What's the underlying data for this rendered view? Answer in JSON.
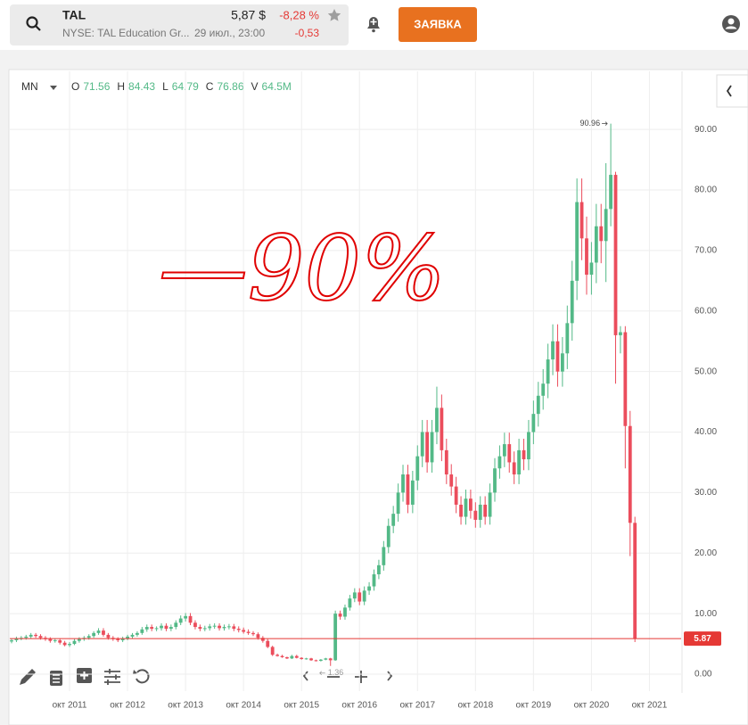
{
  "header": {
    "symbol": "TAL",
    "price": "5,87 $",
    "change_pct": "-8,28 %",
    "exchange_name": "NYSE: TAL Education Gr...",
    "time": "29 июл., 23:00",
    "change": "-0,53",
    "button": "ЗАЯВКА"
  },
  "legend": {
    "interval": "MN",
    "items": [
      {
        "label": "O",
        "value": "71.56"
      },
      {
        "label": "H",
        "value": "84.43"
      },
      {
        "label": "L",
        "value": "64.79"
      },
      {
        "label": "C",
        "value": "76.86"
      },
      {
        "label": "V",
        "value": "64.5M"
      }
    ]
  },
  "chart_data": {
    "type": "candlestick",
    "annotation": "—90%",
    "up_color": "#53b987",
    "down_color": "#eb4d5c",
    "last_price_color": "#e53935",
    "grid": true,
    "ylim": [
      -2.8,
      99.6
    ],
    "yticks": [
      {
        "value": 0,
        "label": "0.00"
      },
      {
        "value": 10,
        "label": "10.00"
      },
      {
        "value": 20,
        "label": "20.00"
      },
      {
        "value": 30,
        "label": "30.00"
      },
      {
        "value": 40,
        "label": "40.00"
      },
      {
        "value": 50,
        "label": "50.00"
      },
      {
        "value": 60,
        "label": "60.00"
      },
      {
        "value": 70,
        "label": "70.00"
      },
      {
        "value": 80,
        "label": "80.00"
      },
      {
        "value": 90,
        "label": "90.00"
      }
    ],
    "categories": [
      null,
      null,
      null,
      null,
      null,
      null,
      null,
      null,
      null,
      null,
      null,
      null,
      "окт 2011",
      null,
      null,
      null,
      null,
      null,
      null,
      null,
      null,
      null,
      null,
      null,
      "окт 2012",
      null,
      null,
      null,
      null,
      null,
      null,
      null,
      null,
      null,
      null,
      null,
      "окт 2013",
      null,
      null,
      null,
      null,
      null,
      null,
      null,
      null,
      null,
      null,
      null,
      "окт 2014",
      null,
      null,
      null,
      null,
      null,
      null,
      null,
      null,
      null,
      null,
      null,
      "окт 2015",
      null,
      null,
      null,
      null,
      null,
      null,
      null,
      null,
      null,
      null,
      null,
      "окт 2016",
      null,
      null,
      null,
      null,
      null,
      null,
      null,
      null,
      null,
      null,
      null,
      "окт 2017",
      null,
      null,
      null,
      null,
      null,
      null,
      null,
      null,
      null,
      null,
      null,
      "окт 2018",
      null,
      null,
      null,
      null,
      null,
      null,
      null,
      null,
      null,
      null,
      null,
      "окт 2019",
      null,
      null,
      null,
      null,
      null,
      null,
      null,
      null,
      null,
      null,
      null,
      "окт 2020",
      null,
      null,
      null,
      null,
      null,
      null,
      null,
      null,
      null,
      null,
      null,
      "окт 2021"
    ],
    "open": [
      5.4,
      5.6,
      5.9,
      6.0,
      6.2,
      6.5,
      6.3,
      6.0,
      5.8,
      5.5,
      5.6,
      5.2,
      4.8,
      5.0,
      5.5,
      5.8,
      6.0,
      6.3,
      6.8,
      7.2,
      6.5,
      6.0,
      5.8,
      5.6,
      5.9,
      6.2,
      6.5,
      6.8,
      7.4,
      7.8,
      7.5,
      7.6,
      8.0,
      7.5,
      7.8,
      8.5,
      9.2,
      9.6,
      8.5,
      7.8,
      7.5,
      7.6,
      7.9,
      8.0,
      7.6,
      7.8,
      7.9,
      7.5,
      7.3,
      7.0,
      6.8,
      6.6,
      6.0,
      5.5,
      4.5,
      3.2,
      3.0,
      2.8,
      2.6,
      3.0,
      2.7,
      2.5,
      2.6,
      2.3,
      2.2,
      2.4,
      2.6,
      2.3,
      10.0,
      9.5,
      11.0,
      12.5,
      13.5,
      12.0,
      13.8,
      14.5,
      16.5,
      18.0,
      21.0,
      24.5,
      26.5,
      30.0,
      33.0,
      28.0,
      32.0,
      36.0,
      40.0,
      35.0,
      40.0,
      44.0,
      37.0,
      33.0,
      31.0,
      28.0,
      26.0,
      29.0,
      27.0,
      25.5,
      28.0,
      26.0,
      30.0,
      34.0,
      36.0,
      38.0,
      35.0,
      33.0,
      37.0,
      35.5,
      40.0,
      43.0,
      46.0,
      48.0,
      52.0,
      55.0,
      50.0,
      53.0,
      58.0,
      65.0,
      78.0,
      72.0,
      66.0,
      68.0,
      74.0,
      71.56,
      76.86,
      82.5,
      56.0,
      56.5,
      41.0,
      25.0,
      null,
      null,
      null
    ],
    "high": [
      5.9,
      6.2,
      6.3,
      6.5,
      6.8,
      6.8,
      6.6,
      6.3,
      6.1,
      5.9,
      5.9,
      5.5,
      5.3,
      5.8,
      6.1,
      6.3,
      6.6,
      7.1,
      7.6,
      7.6,
      6.8,
      6.3,
      6.1,
      6.2,
      6.5,
      6.8,
      7.1,
      7.8,
      8.2,
      8.2,
      7.9,
      8.4,
      8.4,
      8.2,
      8.9,
      9.7,
      10.1,
      10.1,
      8.9,
      8.2,
      8.0,
      8.3,
      8.4,
      8.4,
      8.2,
      8.3,
      8.3,
      7.9,
      7.7,
      7.4,
      7.1,
      6.9,
      6.3,
      5.8,
      4.7,
      3.4,
      3.2,
      2.9,
      3.2,
      3.2,
      2.8,
      2.7,
      2.7,
      2.4,
      2.5,
      2.7,
      2.7,
      10.5,
      10.5,
      11.5,
      13.1,
      14.2,
      14.2,
      14.5,
      15.2,
      17.3,
      18.9,
      22.0,
      25.7,
      27.8,
      31.5,
      34.6,
      34.6,
      33.6,
      37.8,
      42.0,
      42.0,
      42.0,
      47.5,
      46.2,
      38.9,
      34.7,
      32.6,
      29.4,
      30.5,
      30.5,
      28.4,
      29.4,
      29.4,
      31.5,
      35.7,
      37.8,
      39.9,
      39.9,
      36.8,
      38.9,
      38.9,
      42.0,
      45.2,
      48.3,
      50.4,
      54.6,
      57.8,
      57.8,
      55.7,
      60.9,
      68.3,
      81.9,
      81.9,
      75.6,
      71.4,
      77.7,
      77.7,
      84.43,
      90.96,
      83.0,
      57.5,
      57.5,
      43.5,
      26.0,
      null,
      null,
      null
    ],
    "low": [
      5.1,
      5.3,
      5.6,
      5.7,
      5.9,
      6.0,
      5.7,
      5.5,
      5.2,
      5.2,
      4.9,
      4.6,
      4.5,
      4.8,
      5.2,
      5.5,
      5.7,
      6.0,
      6.5,
      6.2,
      5.7,
      5.5,
      5.3,
      5.3,
      5.6,
      5.9,
      6.2,
      6.5,
      7.0,
      7.1,
      7.1,
      7.2,
      7.1,
      7.1,
      7.4,
      8.1,
      8.7,
      8.1,
      7.4,
      7.1,
      7.1,
      7.2,
      7.5,
      7.2,
      7.2,
      7.4,
      7.1,
      6.9,
      6.7,
      6.5,
      6.3,
      5.7,
      5.2,
      4.3,
      3.0,
      2.9,
      2.7,
      2.5,
      2.5,
      2.6,
      2.4,
      2.4,
      2.2,
      2.1,
      2.1,
      2.3,
      1.36,
      2.2,
      9.0,
      9.0,
      10.5,
      11.9,
      11.4,
      11.4,
      13.1,
      13.8,
      15.7,
      17.1,
      20.0,
      23.3,
      25.2,
      28.5,
      26.6,
      26.6,
      30.4,
      34.2,
      33.3,
      33.3,
      38.0,
      35.2,
      31.4,
      29.5,
      26.6,
      24.7,
      24.7,
      25.7,
      24.2,
      24.2,
      24.7,
      24.7,
      28.5,
      32.3,
      34.2,
      33.3,
      31.4,
      31.4,
      33.7,
      33.7,
      38.0,
      40.9,
      43.7,
      45.6,
      49.4,
      47.5,
      47.5,
      50.4,
      55.1,
      61.8,
      68.4,
      62.7,
      62.7,
      64.6,
      67.9,
      64.79,
      74.0,
      48.0,
      53.0,
      34.0,
      19.5,
      5.3,
      null,
      null,
      null
    ],
    "close": [
      5.6,
      5.9,
      6.0,
      6.2,
      6.5,
      6.3,
      6.0,
      5.8,
      5.5,
      5.6,
      5.2,
      4.8,
      5.0,
      5.5,
      5.8,
      6.0,
      6.3,
      6.8,
      7.2,
      6.5,
      6.0,
      5.8,
      5.6,
      5.9,
      6.2,
      6.5,
      6.8,
      7.4,
      7.8,
      7.5,
      7.6,
      8.0,
      7.5,
      7.8,
      8.5,
      9.2,
      9.6,
      8.5,
      7.8,
      7.5,
      7.6,
      7.9,
      8.0,
      7.6,
      7.8,
      7.9,
      7.5,
      7.3,
      7.0,
      6.8,
      6.6,
      6.0,
      5.5,
      4.5,
      3.2,
      3.0,
      2.8,
      2.6,
      3.0,
      2.7,
      2.5,
      2.6,
      2.3,
      2.2,
      2.4,
      2.6,
      2.3,
      10.0,
      9.5,
      11.0,
      12.5,
      13.5,
      12.0,
      13.8,
      14.5,
      16.5,
      18.0,
      21.0,
      24.5,
      26.5,
      30.0,
      33.0,
      28.0,
      32.0,
      36.0,
      40.0,
      35.0,
      40.0,
      44.0,
      37.0,
      33.0,
      31.0,
      28.0,
      26.0,
      29.0,
      27.0,
      25.5,
      28.0,
      26.0,
      30.0,
      34.0,
      36.0,
      38.0,
      35.0,
      33.0,
      37.0,
      35.5,
      40.0,
      43.0,
      46.0,
      48.0,
      52.0,
      55.0,
      50.0,
      53.0,
      58.0,
      65.0,
      78.0,
      72.0,
      66.0,
      68.0,
      74.0,
      71.56,
      76.86,
      82.5,
      56.0,
      56.5,
      41.0,
      25.0,
      5.87,
      null,
      null,
      null
    ]
  }
}
